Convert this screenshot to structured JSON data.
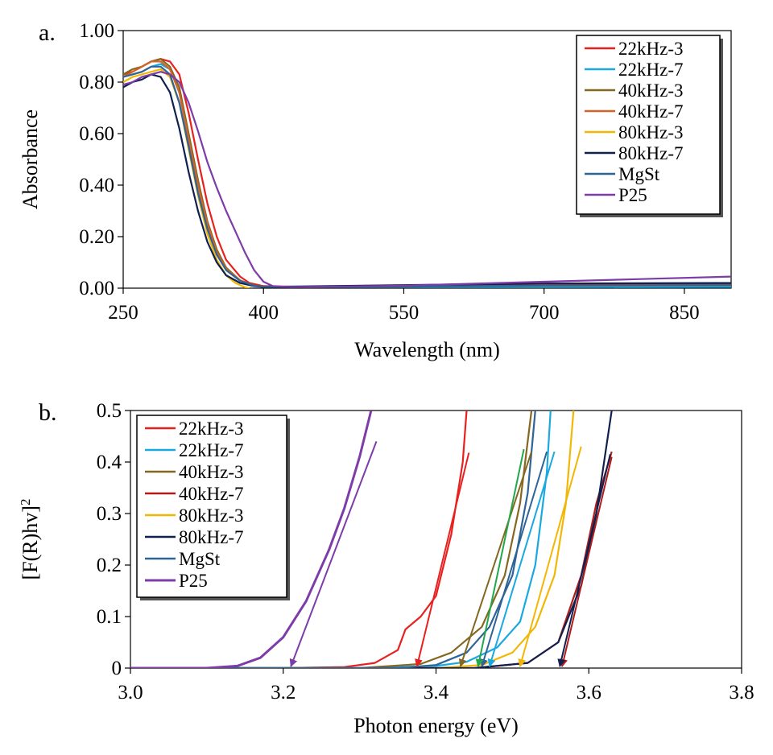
{
  "chart_data": [
    {
      "panel_label": "a.",
      "type": "line",
      "xlabel": "Wavelength (nm)",
      "ylabel": "Absorbance",
      "xlim": [
        250,
        900
      ],
      "ylim": [
        0,
        1.0
      ],
      "xticks": [
        "250",
        "400",
        "550",
        "700",
        "850"
      ],
      "yticks": [
        "0.00",
        "0.20",
        "0.40",
        "0.60",
        "0.80",
        "1.00"
      ],
      "legend_position": "top-right",
      "grid": false,
      "series": [
        {
          "name": "22kHz-3",
          "color": "#e8211f",
          "points": [
            [
              250,
              0.83
            ],
            [
              260,
              0.84
            ],
            [
              270,
              0.86
            ],
            [
              280,
              0.88
            ],
            [
              290,
              0.89
            ],
            [
              300,
              0.88
            ],
            [
              310,
              0.83
            ],
            [
              320,
              0.68
            ],
            [
              330,
              0.5
            ],
            [
              340,
              0.33
            ],
            [
              350,
              0.2
            ],
            [
              360,
              0.11
            ],
            [
              375,
              0.045
            ],
            [
              385,
              0.02
            ],
            [
              400,
              0.008
            ],
            [
              450,
              0.004
            ],
            [
              550,
              0.008
            ],
            [
              700,
              0.012
            ],
            [
              900,
              0.015
            ]
          ]
        },
        {
          "name": "22kHz-7",
          "color": "#1aa8e0",
          "points": [
            [
              250,
              0.82
            ],
            [
              260,
              0.83
            ],
            [
              270,
              0.84
            ],
            [
              280,
              0.86
            ],
            [
              290,
              0.87
            ],
            [
              300,
              0.85
            ],
            [
              310,
              0.76
            ],
            [
              320,
              0.58
            ],
            [
              330,
              0.4
            ],
            [
              340,
              0.25
            ],
            [
              350,
              0.14
            ],
            [
              360,
              0.075
            ],
            [
              375,
              0.03
            ],
            [
              390,
              0.01
            ],
            [
              400,
              0.005
            ],
            [
              550,
              0.004
            ],
            [
              700,
              0.004
            ],
            [
              900,
              0.005
            ]
          ]
        },
        {
          "name": "40kHz-3",
          "color": "#846820",
          "points": [
            [
              250,
              0.83
            ],
            [
              260,
              0.85
            ],
            [
              270,
              0.86
            ],
            [
              280,
              0.88
            ],
            [
              290,
              0.89
            ],
            [
              300,
              0.86
            ],
            [
              310,
              0.78
            ],
            [
              320,
              0.6
            ],
            [
              330,
              0.42
            ],
            [
              340,
              0.26
            ],
            [
              350,
              0.15
            ],
            [
              360,
              0.08
            ],
            [
              375,
              0.03
            ],
            [
              390,
              0.01
            ],
            [
              400,
              0.005
            ],
            [
              550,
              0.006
            ],
            [
              700,
              0.01
            ],
            [
              900,
              0.012
            ]
          ]
        },
        {
          "name": "40kHz-7",
          "color": "#d36428",
          "points": [
            [
              250,
              0.82
            ],
            [
              260,
              0.84
            ],
            [
              270,
              0.86
            ],
            [
              280,
              0.88
            ],
            [
              290,
              0.88
            ],
            [
              300,
              0.85
            ],
            [
              310,
              0.76
            ],
            [
              320,
              0.58
            ],
            [
              330,
              0.4
            ],
            [
              340,
              0.25
            ],
            [
              350,
              0.14
            ],
            [
              360,
              0.075
            ],
            [
              375,
              0.03
            ],
            [
              390,
              0.01
            ],
            [
              400,
              0.005
            ],
            [
              550,
              0.006
            ],
            [
              700,
              0.009
            ],
            [
              900,
              0.011
            ]
          ]
        },
        {
          "name": "80kHz-3",
          "color": "#f2b705",
          "points": [
            [
              250,
              0.8
            ],
            [
              260,
              0.82
            ],
            [
              270,
              0.83
            ],
            [
              280,
              0.84
            ],
            [
              290,
              0.85
            ],
            [
              300,
              0.82
            ],
            [
              310,
              0.72
            ],
            [
              320,
              0.54
            ],
            [
              330,
              0.36
            ],
            [
              340,
              0.21
            ],
            [
              350,
              0.11
            ],
            [
              360,
              0.05
            ],
            [
              370,
              0.02
            ],
            [
              380,
              0.004
            ],
            [
              385,
              0.0
            ]
          ]
        },
        {
          "name": "80kHz-7",
          "color": "#10204f",
          "points": [
            [
              250,
              0.78
            ],
            [
              260,
              0.8
            ],
            [
              270,
              0.81
            ],
            [
              280,
              0.83
            ],
            [
              290,
              0.82
            ],
            [
              300,
              0.76
            ],
            [
              310,
              0.62
            ],
            [
              320,
              0.45
            ],
            [
              330,
              0.3
            ],
            [
              340,
              0.18
            ],
            [
              350,
              0.1
            ],
            [
              360,
              0.05
            ],
            [
              375,
              0.02
            ],
            [
              390,
              0.008
            ],
            [
              400,
              0.005
            ],
            [
              550,
              0.012
            ],
            [
              700,
              0.018
            ],
            [
              900,
              0.02
            ]
          ]
        },
        {
          "name": "MgSt",
          "color": "#2e6496",
          "points": [
            [
              250,
              0.82
            ],
            [
              260,
              0.83
            ],
            [
              270,
              0.84
            ],
            [
              280,
              0.86
            ],
            [
              290,
              0.86
            ],
            [
              300,
              0.83
            ],
            [
              310,
              0.72
            ],
            [
              320,
              0.55
            ],
            [
              330,
              0.37
            ],
            [
              340,
              0.23
            ],
            [
              350,
              0.13
            ],
            [
              360,
              0.07
            ],
            [
              375,
              0.028
            ],
            [
              390,
              0.01
            ],
            [
              400,
              0.005
            ],
            [
              550,
              0.006
            ],
            [
              700,
              0.01
            ],
            [
              900,
              0.012
            ]
          ]
        },
        {
          "name": "P25",
          "color": "#7d3ca8",
          "points": [
            [
              250,
              0.79
            ],
            [
              260,
              0.8
            ],
            [
              270,
              0.82
            ],
            [
              280,
              0.83
            ],
            [
              290,
              0.84
            ],
            [
              300,
              0.83
            ],
            [
              310,
              0.8
            ],
            [
              320,
              0.72
            ],
            [
              330,
              0.61
            ],
            [
              340,
              0.49
            ],
            [
              350,
              0.39
            ],
            [
              360,
              0.3
            ],
            [
              370,
              0.22
            ],
            [
              380,
              0.14
            ],
            [
              390,
              0.07
            ],
            [
              400,
              0.025
            ],
            [
              410,
              0.008
            ],
            [
              430,
              0.004
            ],
            [
              550,
              0.01
            ],
            [
              700,
              0.025
            ],
            [
              800,
              0.035
            ],
            [
              900,
              0.045
            ]
          ]
        }
      ]
    },
    {
      "panel_label": "b.",
      "type": "line",
      "xlabel": "Photon energy (eV)",
      "ylabel": "[F(R)hv]",
      "ylabel_superscript": "2",
      "xlim": [
        3.0,
        3.8
      ],
      "ylim": [
        0,
        0.5
      ],
      "xticks": [
        "3.0",
        "3.2",
        "3.4",
        "3.6",
        "3.8"
      ],
      "yticks": [
        "0",
        "0.1",
        "0.2",
        "0.3",
        "0.4",
        "0.5"
      ],
      "legend_position": "top-left",
      "grid": false,
      "series": [
        {
          "name": "22kHz-3",
          "color": "#e8211f",
          "points": [
            [
              3.0,
              0
            ],
            [
              3.2,
              0
            ],
            [
              3.28,
              0.002
            ],
            [
              3.32,
              0.01
            ],
            [
              3.35,
              0.035
            ],
            [
              3.36,
              0.075
            ],
            [
              3.38,
              0.1
            ],
            [
              3.4,
              0.14
            ],
            [
              3.42,
              0.26
            ],
            [
              3.435,
              0.4
            ],
            [
              3.44,
              0.5
            ]
          ],
          "tangent": {
            "from": [
              3.443,
              0.418
            ],
            "to": [
              3.375,
              0.0
            ],
            "color": "#e8211f"
          }
        },
        {
          "name": "22kHz-7",
          "color": "#1aa8e0",
          "points": [
            [
              3.0,
              0
            ],
            [
              3.3,
              0
            ],
            [
              3.4,
              0.004
            ],
            [
              3.44,
              0.012
            ],
            [
              3.48,
              0.04
            ],
            [
              3.51,
              0.09
            ],
            [
              3.53,
              0.2
            ],
            [
              3.545,
              0.38
            ],
            [
              3.55,
              0.5
            ]
          ],
          "tangent": {
            "from": [
              3.555,
              0.42
            ],
            "to": [
              3.47,
              0.0
            ],
            "color": "#1aa8e0"
          }
        },
        {
          "name": "40kHz-3",
          "color": "#846820",
          "points": [
            [
              3.0,
              0
            ],
            [
              3.3,
              0
            ],
            [
              3.38,
              0.008
            ],
            [
              3.42,
              0.03
            ],
            [
              3.46,
              0.08
            ],
            [
              3.49,
              0.18
            ],
            [
              3.51,
              0.32
            ],
            [
              3.525,
              0.5
            ]
          ],
          "tangent": {
            "from": [
              3.525,
              0.42
            ],
            "to": [
              3.432,
              0.0
            ],
            "color": "#846820"
          }
        },
        {
          "name": "40kHz-7",
          "color": "#b01c1c",
          "points": [
            [
              3.0,
              0
            ],
            [
              3.45,
              0
            ],
            [
              3.52,
              0.01
            ],
            [
              3.56,
              0.05
            ],
            [
              3.59,
              0.18
            ],
            [
              3.61,
              0.32
            ],
            [
              3.63,
              0.42
            ]
          ],
          "tangent": {
            "from": [
              3.63,
              0.41
            ],
            "to": [
              3.565,
              0.0
            ],
            "color": "#b01c1c"
          }
        },
        {
          "name": "80kHz-3",
          "color": "#f2b705",
          "points": [
            [
              3.0,
              0
            ],
            [
              3.4,
              0
            ],
            [
              3.46,
              0.006
            ],
            [
              3.5,
              0.03
            ],
            [
              3.53,
              0.08
            ],
            [
              3.555,
              0.18
            ],
            [
              3.57,
              0.32
            ],
            [
              3.58,
              0.5
            ]
          ],
          "tangent": {
            "from": [
              3.59,
              0.43
            ],
            "to": [
              3.51,
              0.0
            ],
            "color": "#f2b705"
          }
        },
        {
          "name": "80kHz-7",
          "color": "#10204f",
          "points": [
            [
              3.0,
              0
            ],
            [
              3.45,
              0
            ],
            [
              3.52,
              0.01
            ],
            [
              3.56,
              0.05
            ],
            [
              3.59,
              0.16
            ],
            [
              3.61,
              0.3
            ],
            [
              3.63,
              0.5
            ]
          ],
          "tangent": {
            "from": [
              3.628,
              0.415
            ],
            "to": [
              3.562,
              0.0
            ],
            "color": "#10204f"
          }
        },
        {
          "name": "MgSt",
          "color": "#2e6496",
          "points": [
            [
              3.0,
              0
            ],
            [
              3.35,
              0
            ],
            [
              3.4,
              0.006
            ],
            [
              3.44,
              0.03
            ],
            [
              3.47,
              0.08
            ],
            [
              3.5,
              0.18
            ],
            [
              3.52,
              0.34
            ],
            [
              3.53,
              0.5
            ]
          ],
          "tangent": {
            "from": [
              3.545,
              0.42
            ],
            "to": [
              3.46,
              0.0
            ],
            "color": "#2e6496"
          }
        },
        {
          "name": "P25",
          "color": "#7d3ca8",
          "width": 3,
          "points": [
            [
              3.0,
              0
            ],
            [
              3.1,
              0
            ],
            [
              3.14,
              0.004
            ],
            [
              3.17,
              0.02
            ],
            [
              3.2,
              0.06
            ],
            [
              3.23,
              0.13
            ],
            [
              3.26,
              0.23
            ],
            [
              3.28,
              0.31
            ],
            [
              3.3,
              0.41
            ],
            [
              3.315,
              0.5
            ]
          ],
          "tangent": {
            "from": [
              3.322,
              0.44
            ],
            "to": [
              3.21,
              0.0
            ],
            "color": "#7d3ca8"
          }
        }
      ],
      "extra_tangent": {
        "from": [
          3.515,
          0.425
        ],
        "to": [
          3.455,
          0.0
        ],
        "color": "#22a84a"
      }
    }
  ]
}
